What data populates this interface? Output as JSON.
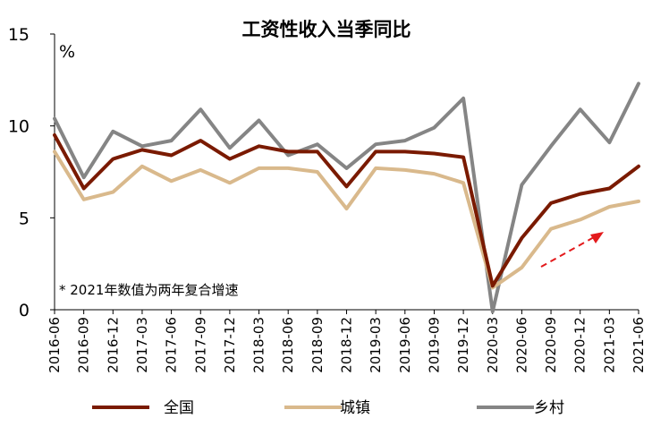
{
  "chart_data": {
    "type": "line",
    "title": "工资性收入当季同比",
    "unit_label": "%",
    "note": "* 2021年数值为两年复合增速",
    "ylim": [
      0,
      15
    ],
    "yticks": [
      "0",
      "5",
      "10",
      "15"
    ],
    "categories": [
      "2016-06",
      "2016-09",
      "2016-12",
      "2017-03",
      "2017-06",
      "2017-09",
      "2017-12",
      "2018-03",
      "2018-06",
      "2018-09",
      "2018-12",
      "2019-03",
      "2019-06",
      "2019-09",
      "2019-12",
      "2020-03",
      "2020-06",
      "2020-09",
      "2020-12",
      "2021-03",
      "2021-06"
    ],
    "series": [
      {
        "name": "全国",
        "color": "#7a1a00",
        "values": [
          9.5,
          6.6,
          8.2,
          8.7,
          8.4,
          9.2,
          8.2,
          8.9,
          8.6,
          8.6,
          6.7,
          8.6,
          8.6,
          8.5,
          8.3,
          1.3,
          3.9,
          5.8,
          6.3,
          6.6,
          7.8
        ]
      },
      {
        "name": "城镇",
        "color": "#d9b98c",
        "values": [
          8.6,
          6.0,
          6.4,
          7.8,
          7.0,
          7.6,
          6.9,
          7.7,
          7.7,
          7.5,
          5.5,
          7.7,
          7.6,
          7.4,
          6.9,
          1.2,
          2.3,
          4.4,
          4.9,
          5.6,
          5.9
        ]
      },
      {
        "name": "乡村",
        "color": "#858585",
        "values": [
          10.4,
          7.2,
          9.7,
          8.9,
          9.2,
          10.9,
          8.8,
          10.3,
          8.4,
          9.0,
          7.7,
          9.0,
          9.2,
          9.9,
          11.5,
          -0.1,
          6.8,
          8.9,
          10.9,
          9.1,
          12.3
        ]
      }
    ],
    "annotation": {
      "type": "dashed-arrow",
      "color": "#e31a1c"
    },
    "legend_position": "bottom"
  }
}
